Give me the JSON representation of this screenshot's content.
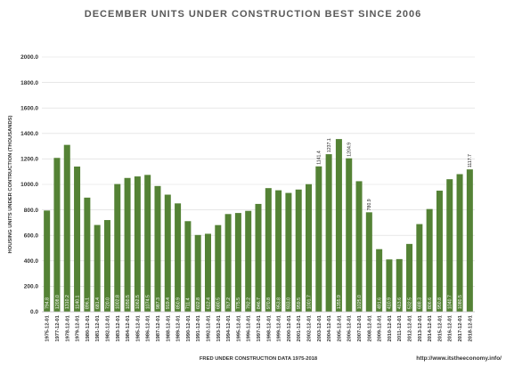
{
  "chart_data": {
    "type": "bar",
    "title": "DECEMBER UNITS UNDER CONSTRUCTION BEST SINCE 2006",
    "xlabel": "FRED UNDER CONSTRUCTION DATA 1975-2018",
    "ylabel": "HOUSING UNITS UNDER CONTRUCTION (THOUSANDS)",
    "source": "http://www.itstheeconomy.info/",
    "ylim": [
      0,
      2000
    ],
    "ytick_labels": [
      "0.0",
      "200.0",
      "400.0",
      "600.0",
      "800.0",
      "1000.0",
      "1200.0",
      "1400.0",
      "1600.0",
      "1800.0",
      "2000.0"
    ],
    "grid": true,
    "bar_color": "#548235",
    "categories": [
      "1975-12-01",
      "1977-12-01",
      "1978-12-01",
      "1979-12-01",
      "1980-12-01",
      "1981-12-01",
      "1982-12-01",
      "1983-12-01",
      "1984-12-01",
      "1985-12-01",
      "1986-12-01",
      "1987-12-01",
      "1988-12-01",
      "1989-12-01",
      "1990-12-01",
      "1991-12-01",
      "1992-12-01",
      "1993-12-01",
      "1994-12-01",
      "1995-12-01",
      "1996-12-01",
      "1997-12-01",
      "1998-12-01",
      "1999-12-01",
      "2000-12-01",
      "2001-12-01",
      "2002-12-01",
      "2003-12-01",
      "2004-12-01",
      "2005-12-01",
      "2006-12-01",
      "2007-12-01",
      "2008-12-01",
      "2009-12-01",
      "2010-12-01",
      "2011-12-01",
      "2012-12-01",
      "2013-12-01",
      "2014-12-01",
      "2015-12-01",
      "2016-12-01",
      "2017-12-01",
      "2018-12-01"
    ],
    "values": [
      794.8,
      1208.0,
      1310.2,
      1140.1,
      896.1,
      681.4,
      720.0,
      1002.8,
      1050.5,
      1062.5,
      1074.5,
      987.3,
      919.4,
      850.9,
      711.4,
      602.8,
      612.4,
      680.5,
      767.2,
      775.5,
      792.2,
      846.7,
      970.8,
      953.8,
      933.0,
      959.5,
      1001.7,
      1141.4,
      1237.1,
      1355.9,
      1204.9,
      1025.0,
      780.9,
      491.6,
      410.9,
      413.6,
      532.5,
      688.3,
      806.6,
      950.8,
      1040.7,
      1080.5,
      1117.7
    ],
    "value_labels": [
      "794.8",
      "1208.0",
      "1310.2",
      "1140.1",
      "896.1",
      "681.4",
      "720.0",
      "1002.8",
      "1050.5",
      "1062.5",
      "1074.5",
      "987.3",
      "919.4",
      "850.9",
      "711.4",
      "602.8",
      "612.4",
      "680.5",
      "767.2",
      "775.5",
      "792.2",
      "846.7",
      "970.8",
      "953.8",
      "933.0",
      "959.5",
      "1001.7",
      "1141.4",
      "1237.1",
      "1355.9",
      "1204.9",
      "1025.0",
      "780.9",
      "491.6",
      "410.9",
      "413.6",
      "532.5",
      "688.3",
      "806.6",
      "950.8",
      "1040.7",
      "1080.5",
      "1117.7"
    ],
    "labels_outside": [
      "1141.4",
      "1237.1",
      "1204.9",
      "780.9",
      "1117.7"
    ]
  }
}
